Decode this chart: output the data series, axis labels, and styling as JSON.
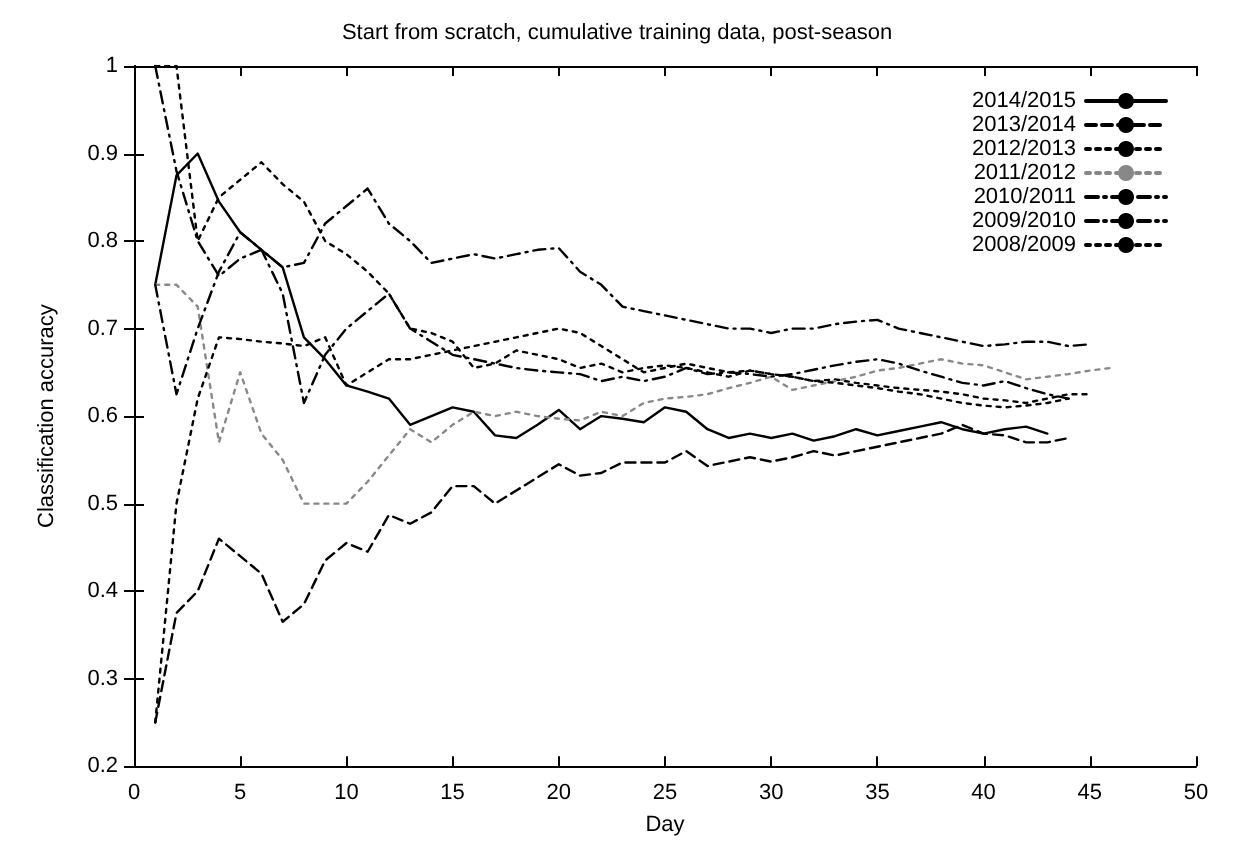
{
  "chart_data": {
    "type": "line",
    "title": "Start from scratch, cumulative training data, post-season",
    "xlabel": "Day",
    "ylabel": "Classification accuracy",
    "xlim": [
      0,
      50
    ],
    "xticks": [
      0,
      5,
      10,
      15,
      20,
      25,
      30,
      35,
      40,
      45,
      50
    ],
    "ylim": [
      0.2,
      1
    ],
    "yticks": [
      0.2,
      0.3,
      0.4,
      0.5,
      0.6,
      0.7,
      0.8,
      0.9,
      1
    ],
    "grid": false,
    "legend": "top right",
    "marker": "none",
    "series": [
      {
        "name": "2014/2015",
        "color": "#000000",
        "line_style": "solid",
        "x": [
          1,
          2,
          3,
          4,
          5,
          6,
          7,
          8,
          9,
          10,
          11,
          12,
          13,
          14,
          15,
          16,
          17,
          18,
          19,
          20,
          21,
          22,
          23,
          24,
          25,
          26,
          27,
          28,
          29,
          30,
          31,
          32,
          33,
          34,
          35,
          36,
          37,
          38,
          39,
          40,
          41,
          42,
          43
        ],
        "values": [
          0.75,
          0.875,
          0.9,
          0.845,
          0.81,
          0.79,
          0.77,
          0.69,
          0.665,
          0.635,
          0.628,
          0.62,
          0.59,
          0.6,
          0.61,
          0.605,
          0.578,
          0.575,
          0.59,
          0.607,
          0.585,
          0.6,
          0.597,
          0.593,
          0.61,
          0.605,
          0.585,
          0.575,
          0.58,
          0.575,
          0.58,
          0.572,
          0.577,
          0.585,
          0.578,
          0.583,
          0.588,
          0.593,
          0.585,
          0.58,
          0.585,
          0.588,
          0.58
        ]
      },
      {
        "name": "2013/2014",
        "color": "#000000",
        "line_style": "dashed",
        "x": [
          1,
          2,
          3,
          4,
          5,
          6,
          7,
          8,
          9,
          10,
          11,
          12,
          13,
          14,
          15,
          16,
          17,
          18,
          19,
          20,
          21,
          22,
          23,
          24,
          25,
          26,
          27,
          28,
          29,
          30,
          31,
          32,
          33,
          34,
          35,
          36,
          37,
          38,
          39,
          40,
          41,
          42,
          43,
          44
        ],
        "values": [
          0.25,
          0.375,
          0.4,
          0.46,
          0.44,
          0.42,
          0.365,
          0.385,
          0.435,
          0.455,
          0.445,
          0.487,
          0.477,
          0.49,
          0.52,
          0.52,
          0.5,
          0.515,
          0.53,
          0.545,
          0.532,
          0.535,
          0.547,
          0.547,
          0.547,
          0.56,
          0.543,
          0.548,
          0.553,
          0.548,
          0.553,
          0.56,
          0.555,
          0.56,
          0.565,
          0.57,
          0.575,
          0.58,
          0.59,
          0.58,
          0.578,
          0.57,
          0.57,
          0.575
        ]
      },
      {
        "name": "2012/2013",
        "color": "#000000",
        "line_style": "dotted",
        "x": [
          1,
          2,
          3,
          4,
          5,
          6,
          7,
          8,
          9,
          10,
          11,
          12,
          13,
          14,
          15,
          16,
          17,
          18,
          19,
          20,
          21,
          22,
          23,
          24,
          25,
          26,
          27,
          28,
          29,
          30,
          31,
          32,
          33,
          34,
          35,
          36,
          37,
          38,
          39,
          40,
          41,
          42,
          43,
          44,
          45
        ],
        "values": [
          1,
          1,
          0.8,
          0.85,
          0.87,
          0.89,
          0.865,
          0.845,
          0.8,
          0.785,
          0.765,
          0.74,
          0.7,
          0.695,
          0.685,
          0.655,
          0.66,
          0.675,
          0.67,
          0.665,
          0.655,
          0.66,
          0.65,
          0.655,
          0.658,
          0.655,
          0.65,
          0.645,
          0.652,
          0.648,
          0.645,
          0.64,
          0.642,
          0.638,
          0.635,
          0.632,
          0.63,
          0.628,
          0.625,
          0.62,
          0.618,
          0.615,
          0.62,
          0.625,
          0.625
        ]
      },
      {
        "name": "2011/2012",
        "color": "#888888",
        "line_style": "dotted",
        "x": [
          1,
          2,
          3,
          4,
          5,
          6,
          7,
          8,
          9,
          10,
          11,
          12,
          13,
          14,
          15,
          16,
          17,
          18,
          19,
          20,
          21,
          22,
          23,
          24,
          25,
          26,
          27,
          28,
          29,
          30,
          31,
          32,
          33,
          34,
          35,
          36,
          37,
          38,
          39,
          40,
          41,
          42,
          43,
          44,
          45,
          46
        ],
        "values": [
          0.75,
          0.75,
          0.725,
          0.57,
          0.65,
          0.58,
          0.55,
          0.5,
          0.5,
          0.5,
          0.525,
          0.555,
          0.585,
          0.57,
          0.59,
          0.605,
          0.6,
          0.605,
          0.6,
          0.597,
          0.595,
          0.605,
          0.6,
          0.615,
          0.62,
          0.622,
          0.625,
          0.632,
          0.638,
          0.645,
          0.63,
          0.635,
          0.64,
          0.645,
          0.652,
          0.655,
          0.66,
          0.665,
          0.66,
          0.658,
          0.65,
          0.642,
          0.645,
          0.648,
          0.652,
          0.655
        ]
      },
      {
        "name": "2010/2011",
        "color": "#000000",
        "line_style": "dashdot",
        "x": [
          1,
          2,
          3,
          4,
          5,
          6,
          7,
          8,
          9,
          10,
          11,
          12,
          13,
          14,
          15,
          16,
          17,
          18,
          19,
          20,
          21,
          22,
          23,
          24,
          25,
          26,
          27,
          28,
          29,
          30,
          31,
          32,
          33,
          34,
          35,
          36,
          37,
          38,
          39,
          40,
          41,
          42,
          43,
          44
        ],
        "values": [
          0.75,
          0.625,
          0.7,
          0.765,
          0.81,
          0.79,
          0.74,
          0.615,
          0.67,
          0.7,
          0.72,
          0.74,
          0.7,
          0.685,
          0.67,
          0.665,
          0.66,
          0.655,
          0.652,
          0.65,
          0.648,
          0.64,
          0.645,
          0.64,
          0.645,
          0.655,
          0.648,
          0.65,
          0.648,
          0.645,
          0.648,
          0.653,
          0.658,
          0.662,
          0.665,
          0.66,
          0.652,
          0.645,
          0.638,
          0.635,
          0.64,
          0.632,
          0.625,
          0.62
        ]
      },
      {
        "name": "2009/2010",
        "color": "#000000",
        "line_style": "dashdot",
        "x": [
          1,
          2,
          3,
          4,
          5,
          6,
          7,
          8,
          9,
          10,
          11,
          12,
          13,
          14,
          15,
          16,
          17,
          18,
          19,
          20,
          21,
          22,
          23,
          24,
          25,
          26,
          27,
          28,
          29,
          30,
          31,
          32,
          33,
          34,
          35,
          36,
          37,
          38,
          39,
          40,
          41,
          42,
          43,
          44,
          45
        ],
        "values": [
          1,
          0.88,
          0.8,
          0.76,
          0.78,
          0.79,
          0.77,
          0.775,
          0.82,
          0.84,
          0.86,
          0.82,
          0.8,
          0.775,
          0.78,
          0.785,
          0.78,
          0.785,
          0.79,
          0.792,
          0.765,
          0.75,
          0.725,
          0.72,
          0.715,
          0.71,
          0.705,
          0.7,
          0.7,
          0.695,
          0.7,
          0.7,
          0.705,
          0.708,
          0.71,
          0.7,
          0.695,
          0.69,
          0.685,
          0.68,
          0.682,
          0.685,
          0.685,
          0.68,
          0.682
        ]
      },
      {
        "name": "2008/2009",
        "color": "#000000",
        "line_style": "dotted",
        "x": [
          1,
          2,
          3,
          4,
          5,
          6,
          7,
          8,
          9,
          10,
          11,
          12,
          13,
          14,
          15,
          16,
          17,
          18,
          19,
          20,
          21,
          22,
          23,
          24,
          25,
          26,
          27,
          28,
          29,
          30,
          31,
          32,
          33,
          34,
          35,
          36,
          37,
          38,
          39,
          40,
          41,
          42,
          43,
          44
        ],
        "values": [
          0.25,
          0.5,
          0.62,
          0.69,
          0.688,
          0.685,
          0.683,
          0.68,
          0.69,
          0.635,
          0.65,
          0.665,
          0.665,
          0.67,
          0.675,
          0.68,
          0.685,
          0.69,
          0.695,
          0.7,
          0.695,
          0.68,
          0.665,
          0.65,
          0.655,
          0.66,
          0.655,
          0.65,
          0.652,
          0.648,
          0.645,
          0.64,
          0.638,
          0.635,
          0.632,
          0.628,
          0.625,
          0.62,
          0.615,
          0.612,
          0.61,
          0.612,
          0.615,
          0.62
        ]
      }
    ]
  }
}
